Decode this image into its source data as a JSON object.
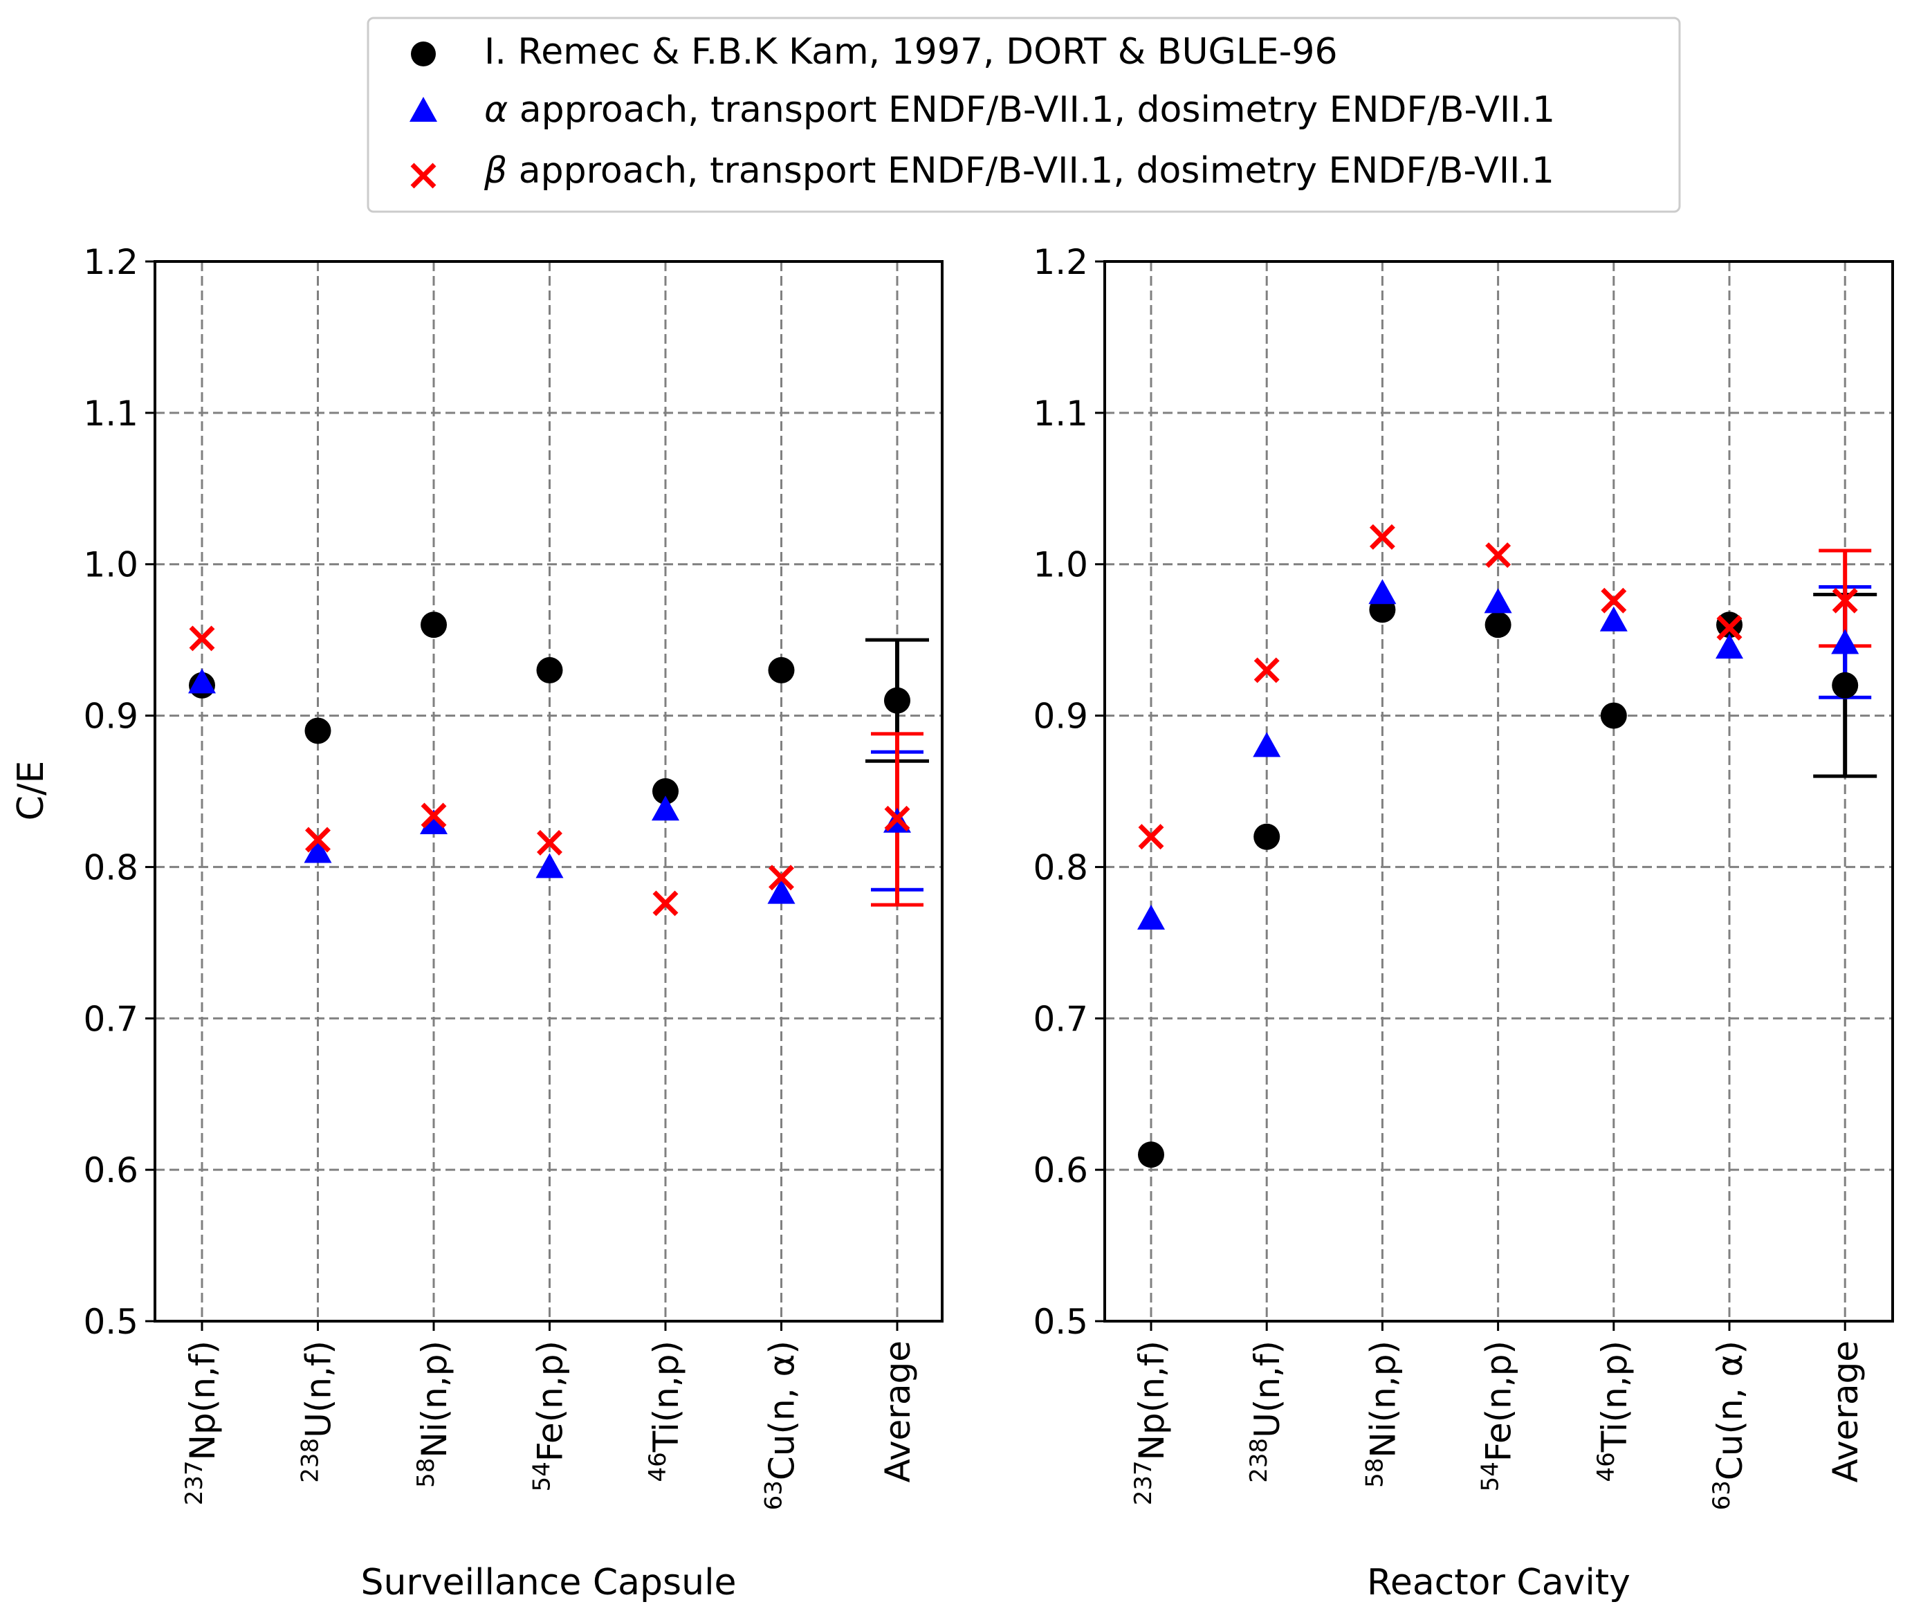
{
  "legend": [
    {
      "label": "I. Remec & F.B.K Kam, 1997, DORT & BUGLE-96",
      "color": "#000000",
      "marker": "circle"
    },
    {
      "label_greek": "α",
      "label": " approach, transport ENDF/B-VII.1, dosimetry ENDF/B-VII.1",
      "color": "#0000ff",
      "marker": "triangle"
    },
    {
      "label_greek": "β",
      "label": " approach, transport ENDF/B-VII.1, dosimetry ENDF/B-VII.1",
      "color": "#ff0000",
      "marker": "x"
    }
  ],
  "ylabel": "C/E",
  "chart_data": [
    {
      "type": "scatter",
      "xlabel": "Surveillance Capsule",
      "ylabel": "C/E",
      "ylim": [
        0.5,
        1.2
      ],
      "yticks": [
        "0.5",
        "0.6",
        "0.7",
        "0.8",
        "0.9",
        "1.0",
        "1.1",
        "1.2"
      ],
      "grid": true,
      "categories": [
        {
          "sup": "237",
          "base": "Np(n,f)"
        },
        {
          "sup": "238",
          "base": "U(n,f)"
        },
        {
          "sup": "58",
          "base": "Ni(n,p)"
        },
        {
          "sup": "54",
          "base": "Fe(n,p)"
        },
        {
          "sup": "46",
          "base": "Ti(n,p)"
        },
        {
          "sup": "63",
          "base": "Cu(n, α)"
        },
        {
          "sup": "",
          "base": "Average"
        }
      ],
      "series": [
        {
          "name": "I. Remec & F.B.K Kam, 1997, DORT & BUGLE-96",
          "values": [
            0.92,
            0.89,
            0.96,
            0.93,
            0.85,
            0.93,
            0.91
          ],
          "avg_err": [
            0.87,
            0.95
          ]
        },
        {
          "name": "α approach",
          "values": [
            0.922,
            0.81,
            0.829,
            0.8,
            0.838,
            0.783,
            0.83
          ],
          "avg_err": [
            0.785,
            0.876
          ]
        },
        {
          "name": "β approach",
          "values": [
            0.951,
            0.818,
            0.834,
            0.816,
            0.776,
            0.793,
            0.832
          ],
          "avg_err": [
            0.775,
            0.888
          ]
        }
      ]
    },
    {
      "type": "scatter",
      "xlabel": "Reactor Cavity",
      "ylabel": "",
      "ylim": [
        0.5,
        1.2
      ],
      "yticks": [
        "0.5",
        "0.6",
        "0.7",
        "0.8",
        "0.9",
        "1.0",
        "1.1",
        "1.2"
      ],
      "grid": true,
      "categories": [
        {
          "sup": "237",
          "base": "Np(n,f)"
        },
        {
          "sup": "238",
          "base": "U(n,f)"
        },
        {
          "sup": "58",
          "base": "Ni(n,p)"
        },
        {
          "sup": "54",
          "base": "Fe(n,p)"
        },
        {
          "sup": "46",
          "base": "Ti(n,p)"
        },
        {
          "sup": "63",
          "base": "Cu(n, α)"
        },
        {
          "sup": "",
          "base": "Average"
        }
      ],
      "series": [
        {
          "name": "I. Remec & F.B.K Kam, 1997, DORT & BUGLE-96",
          "values": [
            0.61,
            0.82,
            0.97,
            0.96,
            0.9,
            0.96,
            0.92
          ],
          "avg_err": [
            0.86,
            0.98
          ]
        },
        {
          "name": "α approach",
          "values": [
            0.766,
            0.88,
            0.981,
            0.975,
            0.963,
            0.945,
            0.948
          ],
          "avg_err": [
            0.912,
            0.985
          ]
        },
        {
          "name": "β approach",
          "values": [
            0.82,
            0.93,
            1.018,
            1.006,
            0.976,
            0.958,
            0.976
          ],
          "avg_err": [
            0.946,
            1.009
          ]
        }
      ]
    }
  ]
}
